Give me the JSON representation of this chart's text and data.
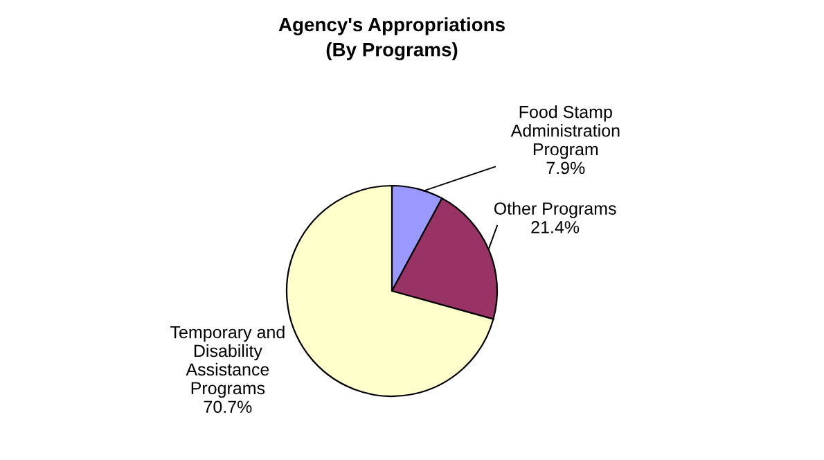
{
  "chart_data": {
    "type": "pie",
    "title": "Agency's Appropriations\n(By Programs)",
    "categories": [
      "Food Stamp\nAdministration\nProgram",
      "Other Programs",
      "Temporary and\nDisability\nAssistance\nPrograms"
    ],
    "values": [
      7.9,
      21.4,
      70.7
    ],
    "value_labels": [
      "7.9%",
      "21.4%",
      "70.7%"
    ],
    "colors": [
      "#9999ff",
      "#993366",
      "#ffffcc"
    ],
    "legend": false
  }
}
